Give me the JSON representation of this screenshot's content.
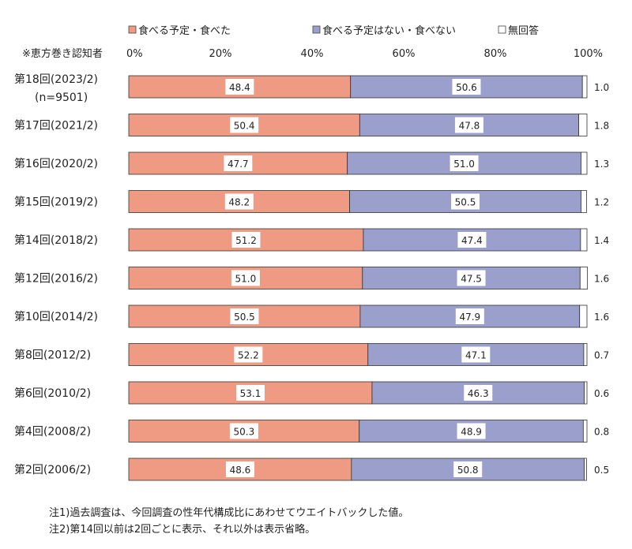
{
  "chart_data": {
    "type": "bar",
    "orientation": "horizontal",
    "stacked": true,
    "subtitle": "※恵方巻き認知者",
    "xlim": [
      0,
      100
    ],
    "x_ticks": [
      "0%",
      "20%",
      "40%",
      "60%",
      "80%",
      "100%"
    ],
    "grid": false,
    "legend_position": "top",
    "categories": [
      [
        "第18回(2023/2)",
        "(n=9501)"
      ],
      [
        "第17回(2021/2)"
      ],
      [
        "第16回(2020/2)"
      ],
      [
        "第15回(2019/2)"
      ],
      [
        "第14回(2018/2)"
      ],
      [
        "第12回(2016/2)"
      ],
      [
        "第10回(2014/2)"
      ],
      [
        "第8回(2012/2)"
      ],
      [
        "第6回(2010/2)"
      ],
      [
        "第4回(2008/2)"
      ],
      [
        "第2回(2006/2)"
      ]
    ],
    "series": [
      {
        "name": "食べる予定・食べた",
        "color": "#ef9a82",
        "values": [
          48.4,
          50.4,
          47.7,
          48.2,
          51.2,
          51.0,
          50.5,
          52.2,
          53.1,
          50.3,
          48.6
        ],
        "labels": [
          "48.4",
          "50.4",
          "47.7",
          "48.2",
          "51.2",
          "51.0",
          "50.5",
          "52.2",
          "53.1",
          "50.3",
          "48.6"
        ]
      },
      {
        "name": "食べる予定はない・食べない",
        "color": "#9b9fcb",
        "values": [
          50.6,
          47.8,
          51.0,
          50.5,
          47.4,
          47.5,
          47.9,
          47.1,
          46.3,
          48.9,
          50.8
        ],
        "labels": [
          "50.6",
          "47.8",
          "51.0",
          "50.5",
          "47.4",
          "47.5",
          "47.9",
          "47.1",
          "46.3",
          "48.9",
          "50.8"
        ]
      },
      {
        "name": "無回答",
        "color": "#ffffff",
        "values": [
          1.0,
          1.8,
          1.3,
          1.2,
          1.4,
          1.6,
          1.6,
          0.7,
          0.6,
          0.8,
          0.5
        ],
        "labels": [
          "1.0",
          "1.8",
          "1.3",
          "1.2",
          "1.4",
          "1.6",
          "1.6",
          "0.7",
          "0.6",
          "0.8",
          "0.5"
        ]
      }
    ]
  },
  "notes": [
    "注1)過去調査は、今回調査の性年代構成比にあわせてウエイトバックした値。",
    "注2)第14回以前は2回ごとに表示、それ以外は表示省略。"
  ]
}
